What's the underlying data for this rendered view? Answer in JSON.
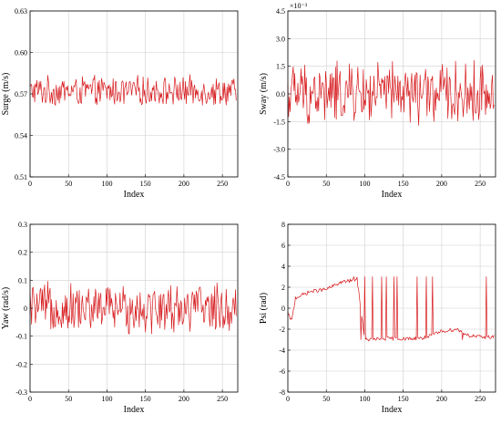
{
  "colors": {
    "series": "#d7191c",
    "series_dark": "#8b4513"
  },
  "chart_data": [
    {
      "type": "line",
      "xlabel": "Index",
      "ylabel": "Surge (m/s)",
      "xlim": [
        0,
        270
      ],
      "ylim": [
        0.51,
        0.63
      ],
      "xticks": [
        0,
        50,
        100,
        150,
        200,
        250
      ],
      "yticks": [
        0.51,
        0.54,
        0.57,
        0.6,
        0.63
      ],
      "ytick_labels": [
        "0.51",
        "0.54",
        "0.57",
        "0.60",
        "0.63"
      ],
      "exponent_label": "",
      "grid": true,
      "series": [
        {
          "baseline": 0.572,
          "amplitude": 0.012,
          "x_end": 268
        }
      ]
    },
    {
      "type": "line",
      "xlabel": "Index",
      "ylabel": "Sway (m/s)",
      "xlim": [
        0,
        270
      ],
      "ylim": [
        -4.5,
        4.5
      ],
      "xticks": [
        0,
        50,
        100,
        150,
        200,
        250
      ],
      "yticks": [
        -4.5,
        -3.0,
        -1.5,
        0.0,
        1.5,
        3.0,
        4.5
      ],
      "ytick_labels": [
        "-4.5",
        "-3.0",
        "-1.5",
        "0.0",
        "1.5",
        "3.0",
        "4.5"
      ],
      "exponent_label": "×10⁻³",
      "grid": true,
      "series": [
        {
          "baseline": 0.0,
          "amplitude": 1.9,
          "x_end": 268
        }
      ]
    },
    {
      "type": "line",
      "xlabel": "Index",
      "ylabel": "Yaw (rad/s)",
      "xlim": [
        0,
        270
      ],
      "ylim": [
        -0.3,
        0.3
      ],
      "xticks": [
        0,
        50,
        100,
        150,
        200,
        250
      ],
      "yticks": [
        -0.3,
        -0.2,
        -0.1,
        0,
        0.1,
        0.2,
        0.3
      ],
      "ytick_labels": [
        "-0.3",
        "-0.2",
        "-0.1",
        "0",
        "0.1",
        "0.2",
        "0.3"
      ],
      "exponent_label": "",
      "grid": true,
      "series": [
        {
          "baseline": 0.0,
          "amplitude": 0.1,
          "x_end": 268
        }
      ]
    },
    {
      "type": "line",
      "xlabel": "Index",
      "ylabel": "Psi (rad)",
      "xlim": [
        0,
        270
      ],
      "ylim": [
        -8,
        8
      ],
      "xticks": [
        0,
        50,
        100,
        150,
        200,
        250
      ],
      "yticks": [
        -8,
        -6,
        -4,
        -2,
        0,
        2,
        4,
        6,
        8
      ],
      "ytick_labels": [
        "-8",
        "-6",
        "-4",
        "-2",
        "0",
        "2",
        "4",
        "6",
        "8"
      ],
      "exponent_label": "",
      "grid": true,
      "series": [
        {
          "trend": [
            [
              0,
              -0.5
            ],
            [
              5,
              -1.2
            ],
            [
              10,
              1.0
            ],
            [
              30,
              1.6
            ],
            [
              50,
              1.8
            ],
            [
              70,
              2.5
            ],
            [
              80,
              2.6
            ],
            [
              90,
              2.8
            ],
            [
              100,
              -3.0
            ],
            [
              130,
              -2.9
            ],
            [
              160,
              -2.9
            ],
            [
              180,
              -2.8
            ],
            [
              200,
              -2.2
            ],
            [
              220,
              -2.0
            ],
            [
              235,
              -2.6
            ],
            [
              255,
              -2.8
            ],
            [
              268,
              -2.7
            ]
          ],
          "wraps": [
            86,
            95,
            100,
            103,
            110,
            115,
            119,
            122,
            128,
            138,
            142,
            153,
            157,
            163,
            168,
            175,
            180,
            188,
            227,
            258
          ],
          "x_end": 268
        }
      ]
    }
  ]
}
